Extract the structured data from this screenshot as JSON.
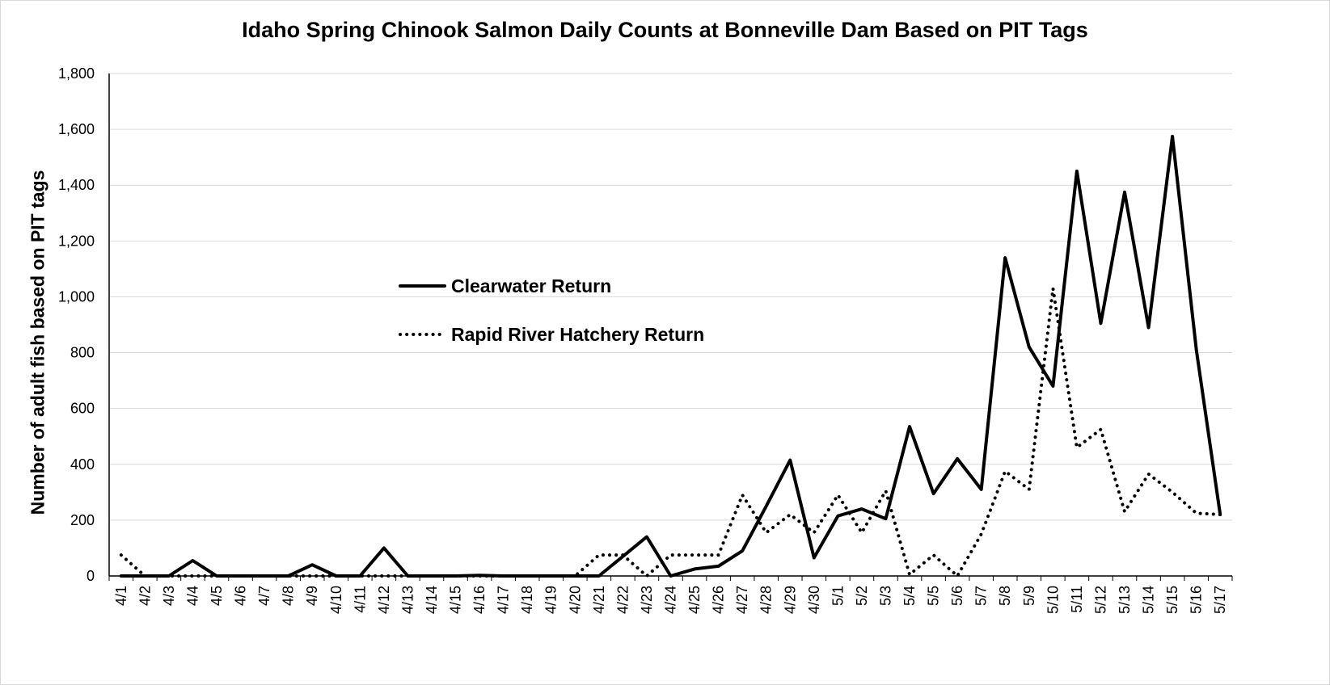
{
  "chart_data": {
    "type": "line",
    "title": "Idaho Spring Chinook Salmon Daily Counts at Bonneville Dam Based on PIT Tags",
    "ylabel": "Number of adult fish based on PIT tags",
    "xlabel": "",
    "ylim": [
      0,
      1800
    ],
    "yticks": [
      "0",
      "200",
      "400",
      "600",
      "800",
      "1,000",
      "1,200",
      "1,400",
      "1,600",
      "1,800"
    ],
    "grid": "horizontal",
    "legend_placement": "center-left",
    "categories": [
      "4/1",
      "4/2",
      "4/3",
      "4/4",
      "4/5",
      "4/6",
      "4/7",
      "4/8",
      "4/9",
      "4/10",
      "4/11",
      "4/12",
      "4/13",
      "4/14",
      "4/15",
      "4/16",
      "4/17",
      "4/18",
      "4/19",
      "4/20",
      "4/21",
      "4/22",
      "4/23",
      "4/24",
      "4/25",
      "4/26",
      "4/27",
      "4/28",
      "4/29",
      "4/30",
      "5/1",
      "5/2",
      "5/3",
      "5/4",
      "5/5",
      "5/6",
      "5/7",
      "5/8",
      "5/9",
      "5/10",
      "5/11",
      "5/12",
      "5/13",
      "5/14",
      "5/15",
      "5/16",
      "5/17"
    ],
    "series": [
      {
        "name": "Clearwater Return",
        "style": "solid",
        "color": "#000000",
        "values": [
          0,
          0,
          0,
          55,
          0,
          0,
          0,
          0,
          40,
          0,
          0,
          100,
          0,
          0,
          0,
          2,
          0,
          0,
          0,
          0,
          0,
          70,
          140,
          0,
          25,
          35,
          90,
          250,
          415,
          65,
          215,
          240,
          205,
          535,
          295,
          420,
          310,
          1140,
          820,
          680,
          1450,
          905,
          1375,
          890,
          1575,
          810,
          220
        ]
      },
      {
        "name": "Rapid River Hatchery Return",
        "style": "dotted",
        "color": "#000000",
        "values": [
          75,
          0,
          0,
          0,
          0,
          0,
          0,
          0,
          0,
          0,
          0,
          0,
          0,
          0,
          0,
          0,
          0,
          0,
          0,
          0,
          75,
          75,
          0,
          75,
          75,
          75,
          290,
          155,
          220,
          155,
          290,
          155,
          305,
          5,
          75,
          0,
          150,
          375,
          310,
          1030,
          460,
          525,
          230,
          365,
          300,
          225,
          220
        ]
      }
    ]
  }
}
